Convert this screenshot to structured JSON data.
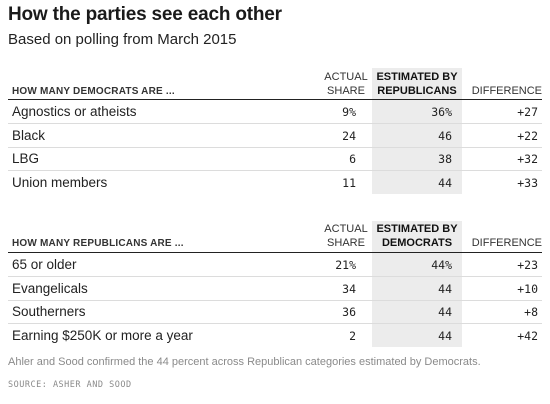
{
  "title": "How the parties see each other",
  "subtitle": "Based on polling from March 2015",
  "chart_data": {
    "type": "table",
    "tables": [
      {
        "row_header": "HOW MANY DEMOCRATS ARE ...",
        "columns": {
          "actual_line1": "ACTUAL",
          "actual_line2": "SHARE",
          "estimated_line1": "ESTIMATED BY",
          "estimated_line2": "REPUBLICANS",
          "difference": "DIFFERENCE"
        },
        "rows": [
          {
            "label": "Agnostics or atheists",
            "actual": "9%",
            "estimated": "36%",
            "difference": "+27"
          },
          {
            "label": "Black",
            "actual": "24",
            "estimated": "46",
            "difference": "+22"
          },
          {
            "label": "LBG",
            "actual": "6",
            "estimated": "38",
            "difference": "+32"
          },
          {
            "label": "Union members",
            "actual": "11",
            "estimated": "44",
            "difference": "+33"
          }
        ]
      },
      {
        "row_header": "HOW MANY REPUBLICANS ARE ...",
        "columns": {
          "actual_line1": "ACTUAL",
          "actual_line2": "SHARE",
          "estimated_line1": "ESTIMATED BY",
          "estimated_line2": "DEMOCRATS",
          "difference": "DIFFERENCE"
        },
        "rows": [
          {
            "label": "65 or older",
            "actual": "21%",
            "estimated": "44%",
            "difference": "+23"
          },
          {
            "label": "Evangelicals",
            "actual": "34",
            "estimated": "44",
            "difference": "+10"
          },
          {
            "label": "Southerners",
            "actual": "36",
            "estimated": "44",
            "difference": "+8"
          },
          {
            "label": "Earning $250K or more a year",
            "actual": "2",
            "estimated": "44",
            "difference": "+42"
          }
        ]
      }
    ]
  },
  "note": "Ahler and Sood confirmed the 44 percent across Republican categories estimated by Democrats.",
  "source": "SOURCE: ASHER AND SOOD",
  "colors": {
    "highlight_band": "#ececec",
    "rule": "#222222",
    "row_divider": "#dcdcdc",
    "muted_text": "#8a8a8a"
  }
}
